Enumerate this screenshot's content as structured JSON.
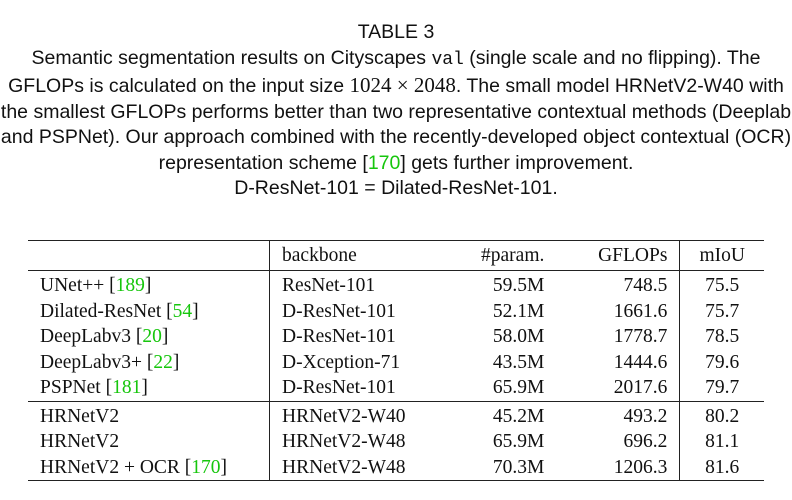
{
  "caption": {
    "label": "TABLE 3",
    "seg1": "Semantic segmentation results on Cityscapes ",
    "mono": "val",
    "seg2": " (single scale and no flipping). The GFLOPs is calculated on the input size ",
    "math": "1024 × 2048",
    "seg3": ". The small model HRNetV2-W40 with the smallest GFLOPs performs better than two representative contextual methods (Deeplab and PSPNet). Our approach combined with the recently-developed object contextual (OCR) representation scheme [",
    "cite": "170",
    "seg4": "] gets further improvement.",
    "line_last": "D-ResNet-101 = Dilated-ResNet-101."
  },
  "table": {
    "headers": {
      "method": "",
      "backbone": "backbone",
      "params": "#param.",
      "gflops": "GFLOPs",
      "miou": "mIoU"
    },
    "group1": [
      {
        "method": "UNet++",
        "cite": "189",
        "backbone": "ResNet-101",
        "params": "59.5M",
        "gflops": "748.5",
        "miou": "75.5"
      },
      {
        "method": "Dilated-ResNet",
        "cite": "54",
        "backbone": "D-ResNet-101",
        "params": "52.1M",
        "gflops": "1661.6",
        "miou": "75.7"
      },
      {
        "method": "DeepLabv3",
        "cite": "20",
        "backbone": "D-ResNet-101",
        "params": "58.0M",
        "gflops": "1778.7",
        "miou": "78.5"
      },
      {
        "method": "DeepLabv3+",
        "cite": "22",
        "backbone": "D-Xception-71",
        "params": "43.5M",
        "gflops": "1444.6",
        "miou": "79.6"
      },
      {
        "method": "PSPNet",
        "cite": "181",
        "backbone": "D-ResNet-101",
        "params": "65.9M",
        "gflops": "2017.6",
        "miou": "79.7"
      }
    ],
    "group2": [
      {
        "method": "HRNetV2",
        "cite": "",
        "backbone": "HRNetV2-W40",
        "params": "45.2M",
        "gflops": "493.2",
        "miou": "80.2"
      },
      {
        "method": "HRNetV2",
        "cite": "",
        "backbone": "HRNetV2-W48",
        "params": "65.9M",
        "gflops": "696.2",
        "miou": "81.1"
      },
      {
        "method": "HRNetV2 + OCR",
        "cite": "170",
        "backbone": "HRNetV2-W48",
        "params": "70.3M",
        "gflops": "1206.3",
        "miou": "81.6"
      }
    ]
  }
}
